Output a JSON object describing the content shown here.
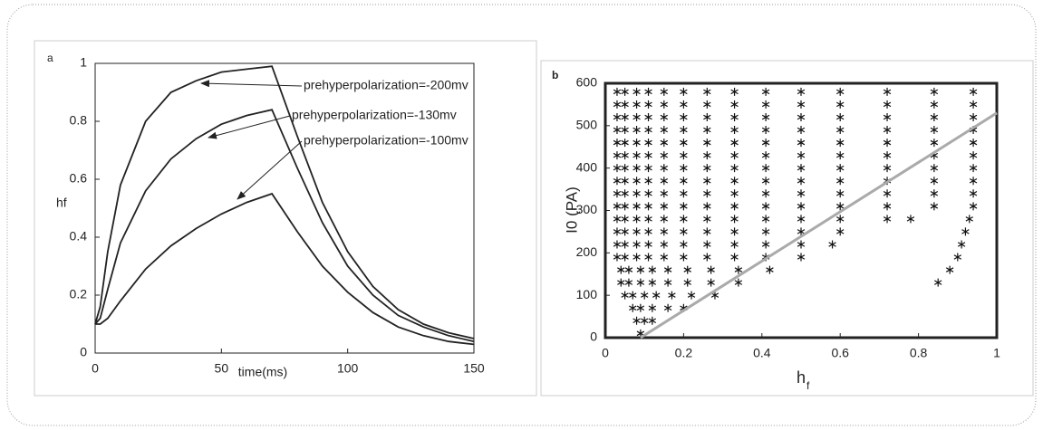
{
  "chart_data": [
    {
      "type": "line",
      "panel_label": "a",
      "y_label": "hf",
      "x_label": "time(ms)",
      "x": [
        0,
        2,
        5,
        10,
        20,
        30,
        40,
        50,
        60,
        70,
        80,
        90,
        100,
        110,
        120,
        130,
        140,
        150
      ],
      "series": [
        {
          "name": "prehyperpolarization=-200mv",
          "color": "#222222",
          "values": [
            0.1,
            0.16,
            0.35,
            0.58,
            0.8,
            0.9,
            0.94,
            0.97,
            0.98,
            0.99,
            0.75,
            0.52,
            0.35,
            0.23,
            0.15,
            0.1,
            0.07,
            0.05
          ]
        },
        {
          "name": "prehyperpolarization=-130mv",
          "color": "#222222",
          "values": [
            0.1,
            0.12,
            0.22,
            0.38,
            0.56,
            0.67,
            0.74,
            0.79,
            0.82,
            0.84,
            0.64,
            0.45,
            0.3,
            0.2,
            0.13,
            0.09,
            0.06,
            0.04
          ]
        },
        {
          "name": "prehyperpolarization=-100mv",
          "color": "#222222",
          "values": [
            0.1,
            0.1,
            0.12,
            0.18,
            0.29,
            0.37,
            0.43,
            0.48,
            0.52,
            0.55,
            0.42,
            0.3,
            0.21,
            0.14,
            0.09,
            0.06,
            0.04,
            0.03
          ]
        }
      ],
      "xlim": [
        0,
        150
      ],
      "xticks": [
        0,
        50,
        100,
        150
      ],
      "ylim": [
        0,
        1
      ],
      "yticks": [
        0,
        0.2,
        0.4,
        0.6,
        0.8,
        1
      ]
    },
    {
      "type": "scatter",
      "panel_label": "b",
      "y_label": "I0 (PA)",
      "x_label": "h",
      "x_label_sub": "f",
      "series": [
        {
          "color": "#111111",
          "x": [
            0.09,
            0.08,
            0.1,
            0.12,
            0.07,
            0.09,
            0.12,
            0.16,
            0.2,
            0.05,
            0.07,
            0.1,
            0.13,
            0.17,
            0.22,
            0.28,
            0.04,
            0.06,
            0.09,
            0.12,
            0.16,
            0.21,
            0.27,
            0.34,
            0.85,
            0.04,
            0.06,
            0.09,
            0.12,
            0.16,
            0.21,
            0.27,
            0.34,
            0.42,
            0.88,
            0.03,
            0.05,
            0.08,
            0.11,
            0.15,
            0.2,
            0.26,
            0.33,
            0.41,
            0.5,
            0.9,
            0.03,
            0.05,
            0.08,
            0.11,
            0.15,
            0.2,
            0.26,
            0.33,
            0.41,
            0.5,
            0.58,
            0.91,
            0.03,
            0.05,
            0.08,
            0.11,
            0.15,
            0.2,
            0.26,
            0.33,
            0.41,
            0.5,
            0.6,
            0.92,
            0.03,
            0.05,
            0.08,
            0.11,
            0.15,
            0.2,
            0.26,
            0.33,
            0.41,
            0.5,
            0.6,
            0.72,
            0.78,
            0.93,
            0.03,
            0.05,
            0.08,
            0.11,
            0.15,
            0.2,
            0.26,
            0.33,
            0.41,
            0.5,
            0.6,
            0.72,
            0.84,
            0.94,
            0.03,
            0.05,
            0.08,
            0.11,
            0.15,
            0.2,
            0.26,
            0.33,
            0.41,
            0.5,
            0.6,
            0.72,
            0.84,
            0.94,
            0.03,
            0.05,
            0.08,
            0.11,
            0.15,
            0.2,
            0.26,
            0.33,
            0.41,
            0.5,
            0.6,
            0.72,
            0.84,
            0.94,
            0.03,
            0.05,
            0.08,
            0.11,
            0.15,
            0.2,
            0.26,
            0.33,
            0.41,
            0.5,
            0.6,
            0.72,
            0.84,
            0.94,
            0.03,
            0.05,
            0.08,
            0.11,
            0.15,
            0.2,
            0.26,
            0.33,
            0.41,
            0.5,
            0.6,
            0.72,
            0.84,
            0.94,
            0.03,
            0.05,
            0.08,
            0.11,
            0.15,
            0.2,
            0.26,
            0.33,
            0.41,
            0.5,
            0.6,
            0.72,
            0.84,
            0.94,
            0.03,
            0.05,
            0.08,
            0.11,
            0.15,
            0.2,
            0.26,
            0.33,
            0.41,
            0.5,
            0.6,
            0.72,
            0.84,
            0.94,
            0.03,
            0.05,
            0.08,
            0.11,
            0.15,
            0.2,
            0.26,
            0.33,
            0.41,
            0.5,
            0.6,
            0.72,
            0.84,
            0.94,
            0.03,
            0.05,
            0.08,
            0.11,
            0.15,
            0.2,
            0.26,
            0.33,
            0.41,
            0.5,
            0.6,
            0.72,
            0.84,
            0.94,
            0.03,
            0.05,
            0.08,
            0.11,
            0.15,
            0.2,
            0.26,
            0.33,
            0.41,
            0.5,
            0.6,
            0.72,
            0.84,
            0.94
          ],
          "y": [
            10,
            40,
            40,
            40,
            70,
            70,
            70,
            70,
            70,
            100,
            100,
            100,
            100,
            100,
            100,
            100,
            130,
            130,
            130,
            130,
            130,
            130,
            130,
            130,
            130,
            160,
            160,
            160,
            160,
            160,
            160,
            160,
            160,
            160,
            160,
            190,
            190,
            190,
            190,
            190,
            190,
            190,
            190,
            190,
            190,
            190,
            220,
            220,
            220,
            220,
            220,
            220,
            220,
            220,
            220,
            220,
            220,
            220,
            250,
            250,
            250,
            250,
            250,
            250,
            250,
            250,
            250,
            250,
            250,
            250,
            280,
            280,
            280,
            280,
            280,
            280,
            280,
            280,
            280,
            280,
            280,
            280,
            280,
            280,
            310,
            310,
            310,
            310,
            310,
            310,
            310,
            310,
            310,
            310,
            310,
            310,
            310,
            310,
            340,
            340,
            340,
            340,
            340,
            340,
            340,
            340,
            340,
            340,
            340,
            340,
            340,
            340,
            370,
            370,
            370,
            370,
            370,
            370,
            370,
            370,
            370,
            370,
            370,
            370,
            370,
            370,
            400,
            400,
            400,
            400,
            400,
            400,
            400,
            400,
            400,
            400,
            400,
            400,
            400,
            400,
            430,
            430,
            430,
            430,
            430,
            430,
            430,
            430,
            430,
            430,
            430,
            430,
            430,
            430,
            460,
            460,
            460,
            460,
            460,
            460,
            460,
            460,
            460,
            460,
            460,
            460,
            460,
            460,
            490,
            490,
            490,
            490,
            490,
            490,
            490,
            490,
            490,
            490,
            490,
            490,
            490,
            490,
            520,
            520,
            520,
            520,
            520,
            520,
            520,
            520,
            520,
            520,
            520,
            520,
            520,
            520,
            550,
            550,
            550,
            550,
            550,
            550,
            550,
            550,
            550,
            550,
            550,
            550,
            550,
            550,
            580,
            580,
            580,
            580,
            580,
            580,
            580,
            580,
            580,
            580,
            580,
            580,
            580,
            580
          ]
        },
        {
          "type": "line",
          "color": "#aaaaaa",
          "x": [
            0.09,
            1
          ],
          "y": [
            0,
            530
          ]
        }
      ],
      "xlim": [
        0,
        1
      ],
      "xticks": [
        0,
        0.2,
        0.4,
        0.6,
        0.8,
        1
      ],
      "ylim": [
        0,
        600
      ],
      "yticks": [
        0,
        100,
        200,
        300,
        400,
        500,
        600
      ]
    }
  ]
}
